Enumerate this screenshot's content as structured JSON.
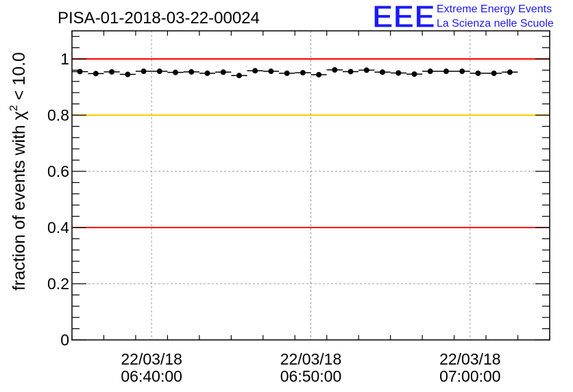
{
  "chart_data": {
    "type": "scatter",
    "title": "PISA-01-2018-03-22-00024",
    "ylabel": "fraction of events with χ² < 10.0",
    "ylabel_parts": {
      "pre": "fraction of events with ",
      "chi": "χ",
      "sup": "2",
      "post": " < 10.0"
    },
    "xlabel": "",
    "x_axis": {
      "type": "time",
      "range": [
        "2018-03-22 06:35:00",
        "2018-03-22 07:05:00"
      ],
      "tick_labels": [
        {
          "time": "06:40:00",
          "date": "22/03/18"
        },
        {
          "time": "06:50:00",
          "date": "22/03/18"
        },
        {
          "time": "07:00:00",
          "date": "22/03/18"
        }
      ]
    },
    "y_axis": {
      "range": [
        0,
        1.1
      ],
      "ticks": [
        0,
        0.2,
        0.4,
        0.6,
        0.8,
        1
      ],
      "tick_labels": [
        "0",
        "0.2",
        "0.4",
        "0.6",
        "0.8",
        "1"
      ]
    },
    "grid": true,
    "reference_lines": [
      {
        "y": 1.0,
        "color": "#ff0000"
      },
      {
        "y": 0.8,
        "color": "#ffcc00"
      },
      {
        "y": 0.4,
        "color": "#ff0000"
      }
    ],
    "series": [
      {
        "marker_color": "#000000",
        "bin_width_seconds": 60,
        "points": [
          {
            "x": "06:35:30",
            "y": 0.955
          },
          {
            "x": "06:36:30",
            "y": 0.948
          },
          {
            "x": "06:37:30",
            "y": 0.954
          },
          {
            "x": "06:38:30",
            "y": 0.945
          },
          {
            "x": "06:39:30",
            "y": 0.956
          },
          {
            "x": "06:40:30",
            "y": 0.956
          },
          {
            "x": "06:41:30",
            "y": 0.952
          },
          {
            "x": "06:42:30",
            "y": 0.954
          },
          {
            "x": "06:43:30",
            "y": 0.949
          },
          {
            "x": "06:44:30",
            "y": 0.953
          },
          {
            "x": "06:45:30",
            "y": 0.941
          },
          {
            "x": "06:46:30",
            "y": 0.958
          },
          {
            "x": "06:47:30",
            "y": 0.956
          },
          {
            "x": "06:48:30",
            "y": 0.949
          },
          {
            "x": "06:49:30",
            "y": 0.951
          },
          {
            "x": "06:50:30",
            "y": 0.944
          },
          {
            "x": "06:51:30",
            "y": 0.961
          },
          {
            "x": "06:52:30",
            "y": 0.955
          },
          {
            "x": "06:53:30",
            "y": 0.96
          },
          {
            "x": "06:54:30",
            "y": 0.953
          },
          {
            "x": "06:55:30",
            "y": 0.95
          },
          {
            "x": "06:56:30",
            "y": 0.946
          },
          {
            "x": "06:57:30",
            "y": 0.956
          },
          {
            "x": "06:58:30",
            "y": 0.956
          },
          {
            "x": "06:59:30",
            "y": 0.956
          },
          {
            "x": "07:00:30",
            "y": 0.949
          },
          {
            "x": "07:01:30",
            "y": 0.949
          },
          {
            "x": "07:02:30",
            "y": 0.953
          }
        ]
      }
    ]
  },
  "logo": {
    "mark": "EEE",
    "line1": "Extreme Energy Events",
    "line2": "La Scienza nelle Scuole",
    "color": "#1a1aff"
  }
}
